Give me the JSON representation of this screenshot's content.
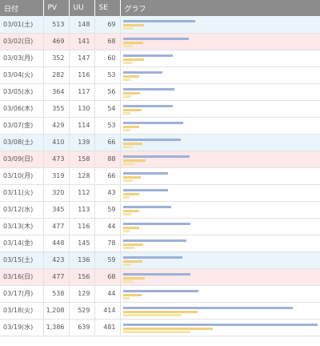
{
  "headers": [
    "日付",
    "PV",
    "UU",
    "SE",
    "グラフ"
  ],
  "colors": {
    "header_bg": "#8c8c8c",
    "saturday_bg": "#eaf5fb",
    "sunday_bg": "#fde8ea",
    "bar_pv": "#9db1d8",
    "bar_uu": "#f2d07c",
    "bar_se": "#f5e6a8"
  },
  "graph_scale_max": 1386,
  "rows": [
    {
      "date": "03/01(土)",
      "pv": "513",
      "uu": "148",
      "se": "69",
      "day": "sat",
      "pv_n": 513,
      "uu_n": 148,
      "se_n": 69
    },
    {
      "date": "03/02(日)",
      "pv": "469",
      "uu": "141",
      "se": "68",
      "day": "sun",
      "pv_n": 469,
      "uu_n": 141,
      "se_n": 68
    },
    {
      "date": "03/03(月)",
      "pv": "352",
      "uu": "147",
      "se": "60",
      "day": "",
      "pv_n": 352,
      "uu_n": 147,
      "se_n": 60
    },
    {
      "date": "03/04(火)",
      "pv": "282",
      "uu": "116",
      "se": "53",
      "day": "",
      "pv_n": 282,
      "uu_n": 116,
      "se_n": 53
    },
    {
      "date": "03/05(水)",
      "pv": "364",
      "uu": "117",
      "se": "56",
      "day": "",
      "pv_n": 364,
      "uu_n": 117,
      "se_n": 56
    },
    {
      "date": "03/06(木)",
      "pv": "355",
      "uu": "130",
      "se": "54",
      "day": "",
      "pv_n": 355,
      "uu_n": 130,
      "se_n": 54
    },
    {
      "date": "03/07(金)",
      "pv": "429",
      "uu": "114",
      "se": "53",
      "day": "",
      "pv_n": 429,
      "uu_n": 114,
      "se_n": 53
    },
    {
      "date": "03/08(土)",
      "pv": "410",
      "uu": "139",
      "se": "66",
      "day": "sat",
      "pv_n": 410,
      "uu_n": 139,
      "se_n": 66
    },
    {
      "date": "03/09(日)",
      "pv": "473",
      "uu": "158",
      "se": "88",
      "day": "sun",
      "pv_n": 473,
      "uu_n": 158,
      "se_n": 88
    },
    {
      "date": "03/10(月)",
      "pv": "319",
      "uu": "128",
      "se": "66",
      "day": "",
      "pv_n": 319,
      "uu_n": 128,
      "se_n": 66
    },
    {
      "date": "03/11(火)",
      "pv": "320",
      "uu": "112",
      "se": "43",
      "day": "",
      "pv_n": 320,
      "uu_n": 112,
      "se_n": 43
    },
    {
      "date": "03/12(水)",
      "pv": "345",
      "uu": "113",
      "se": "59",
      "day": "",
      "pv_n": 345,
      "uu_n": 113,
      "se_n": 59
    },
    {
      "date": "03/13(木)",
      "pv": "477",
      "uu": "116",
      "se": "44",
      "day": "",
      "pv_n": 477,
      "uu_n": 116,
      "se_n": 44
    },
    {
      "date": "03/14(金)",
      "pv": "448",
      "uu": "145",
      "se": "78",
      "day": "",
      "pv_n": 448,
      "uu_n": 145,
      "se_n": 78
    },
    {
      "date": "03/15(土)",
      "pv": "423",
      "uu": "136",
      "se": "59",
      "day": "sat",
      "pv_n": 423,
      "uu_n": 136,
      "se_n": 59
    },
    {
      "date": "03/16(日)",
      "pv": "477",
      "uu": "156",
      "se": "68",
      "day": "sun",
      "pv_n": 477,
      "uu_n": 156,
      "se_n": 68
    },
    {
      "date": "03/17(月)",
      "pv": "538",
      "uu": "129",
      "se": "44",
      "day": "",
      "pv_n": 538,
      "uu_n": 129,
      "se_n": 44
    },
    {
      "date": "03/18(火)",
      "pv": "1,208",
      "uu": "529",
      "se": "414",
      "day": "",
      "pv_n": 1208,
      "uu_n": 529,
      "se_n": 414
    },
    {
      "date": "03/19(水)",
      "pv": "1,386",
      "uu": "639",
      "se": "481",
      "day": "",
      "pv_n": 1386,
      "uu_n": 639,
      "se_n": 481
    }
  ]
}
